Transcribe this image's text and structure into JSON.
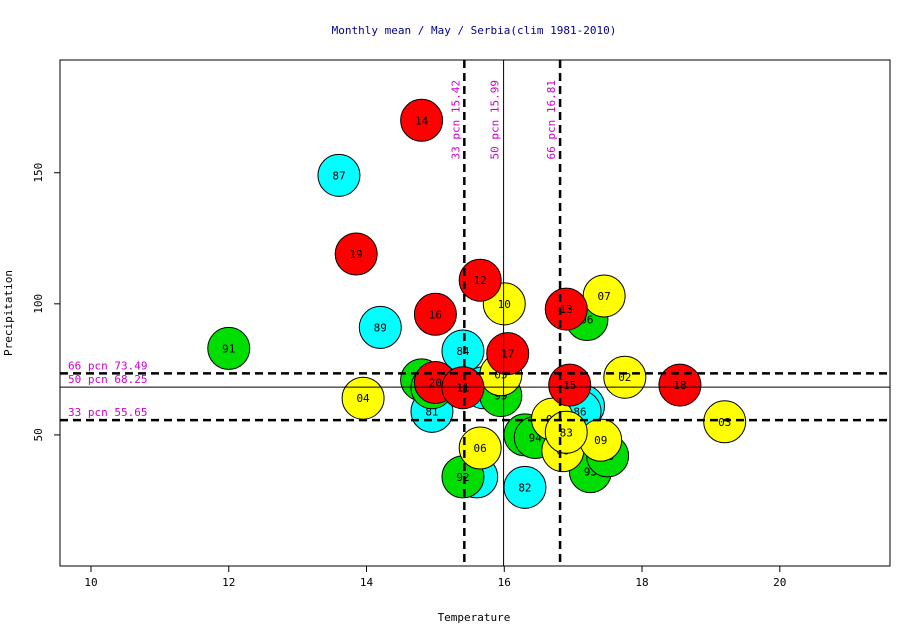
{
  "chart_data": {
    "type": "scatter",
    "title": "Monthly mean / May / Serbia(clim 1981-2010)",
    "xlabel": "Temperature",
    "ylabel": "Precipitation",
    "xlim": [
      9.55,
      21.6
    ],
    "ylim": [
      0,
      193
    ],
    "xticks": [
      10,
      12,
      14,
      16,
      18,
      20
    ],
    "yticks": [
      50,
      100,
      150
    ],
    "grid": false,
    "legend": "none",
    "colors": {
      "red": "#ff0000",
      "yellow": "#ffff00",
      "cyan": "#00ffff",
      "green": "#00dd00",
      "percentile_text": "#cc00cc",
      "title_text": "#00008b"
    },
    "vlines": [
      {
        "x": 15.42,
        "label": "33 pcn 15.42",
        "style": "dashed"
      },
      {
        "x": 15.99,
        "label": "50 pcn 15.99",
        "style": "solid"
      },
      {
        "x": 16.81,
        "label": "66 pcn 16.81",
        "style": "dashed"
      }
    ],
    "hlines": [
      {
        "y": 73.49,
        "label": "66 pcn 73.49",
        "style": "dashed"
      },
      {
        "y": 68.25,
        "label": "50 pcn 68.25",
        "style": "solid"
      },
      {
        "y": 55.65,
        "label": "33 pcn 55.65",
        "style": "dashed"
      }
    ],
    "points": [
      {
        "label": "87",
        "x": 13.6,
        "y": 149,
        "color": "cyan"
      },
      {
        "label": "89",
        "x": 14.2,
        "y": 91,
        "color": "cyan"
      },
      {
        "label": "84",
        "x": 15.4,
        "y": 82,
        "color": "cyan"
      },
      {
        "label": "81",
        "x": 14.95,
        "y": 59,
        "color": "cyan"
      },
      {
        "label": "82",
        "x": 16.3,
        "y": 30,
        "color": "cyan"
      },
      {
        "label": "85",
        "x": 17.15,
        "y": 61,
        "color": "cyan"
      },
      {
        "label": "86",
        "x": 17.1,
        "y": 59,
        "color": "cyan"
      },
      {
        "label": "88",
        "x": 15.7,
        "y": 68,
        "color": "cyan"
      },
      {
        "label": "90",
        "x": 15.6,
        "y": 34,
        "color": "cyan"
      },
      {
        "label": "91",
        "x": 12.0,
        "y": 83,
        "color": "green"
      },
      {
        "label": "95",
        "x": 14.8,
        "y": 71,
        "color": "green"
      },
      {
        "label": "99",
        "x": 15.95,
        "y": 65,
        "color": "green"
      },
      {
        "label": "92",
        "x": 15.4,
        "y": 34,
        "color": "green"
      },
      {
        "label": "97",
        "x": 16.3,
        "y": 50,
        "color": "green"
      },
      {
        "label": "94",
        "x": 16.45,
        "y": 49,
        "color": "green"
      },
      {
        "label": "93",
        "x": 17.25,
        "y": 36,
        "color": "green"
      },
      {
        "label": "96",
        "x": 17.2,
        "y": 94,
        "color": "green"
      },
      {
        "label": "00",
        "x": 17.5,
        "y": 42,
        "color": "green"
      },
      {
        "label": "98",
        "x": 14.95,
        "y": 68,
        "color": "green"
      },
      {
        "label": "10",
        "x": 16.0,
        "y": 100,
        "color": "yellow"
      },
      {
        "label": "07",
        "x": 17.45,
        "y": 103,
        "color": "yellow"
      },
      {
        "label": "02",
        "x": 17.75,
        "y": 72,
        "color": "yellow"
      },
      {
        "label": "03",
        "x": 19.2,
        "y": 55,
        "color": "yellow"
      },
      {
        "label": "04",
        "x": 13.95,
        "y": 64,
        "color": "yellow"
      },
      {
        "label": "06",
        "x": 15.65,
        "y": 45,
        "color": "yellow"
      },
      {
        "label": "01",
        "x": 16.7,
        "y": 56,
        "color": "yellow"
      },
      {
        "label": "05",
        "x": 15.95,
        "y": 73,
        "color": "yellow"
      },
      {
        "label": "08",
        "x": 16.85,
        "y": 44,
        "color": "yellow"
      },
      {
        "label": "09",
        "x": 17.4,
        "y": 48,
        "color": "yellow"
      },
      {
        "label": "83",
        "x": 16.9,
        "y": 51,
        "color": "yellow"
      },
      {
        "label": "14",
        "x": 14.8,
        "y": 170,
        "color": "red"
      },
      {
        "label": "19",
        "x": 13.85,
        "y": 119,
        "color": "red"
      },
      {
        "label": "12",
        "x": 15.65,
        "y": 109,
        "color": "red"
      },
      {
        "label": "16",
        "x": 15.0,
        "y": 96,
        "color": "red"
      },
      {
        "label": "13",
        "x": 16.9,
        "y": 98,
        "color": "red"
      },
      {
        "label": "17",
        "x": 16.05,
        "y": 81,
        "color": "red"
      },
      {
        "label": "20",
        "x": 15.0,
        "y": 70,
        "color": "red"
      },
      {
        "label": "11",
        "x": 15.4,
        "y": 68,
        "color": "red"
      },
      {
        "label": "15",
        "x": 16.95,
        "y": 69,
        "color": "red"
      },
      {
        "label": "18",
        "x": 18.55,
        "y": 69,
        "color": "red"
      }
    ]
  }
}
